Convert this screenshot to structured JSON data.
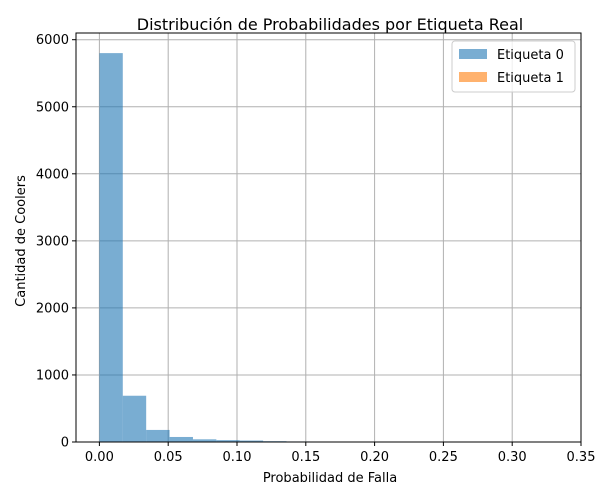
{
  "chart_data": {
    "type": "bar",
    "subtype": "histogram",
    "title": "Distribución de Probabilidades por Etiqueta Real",
    "xlabel": "Probabilidad de Falla",
    "ylabel": "Cantidad de Coolers",
    "xlim": [
      -0.017,
      0.35
    ],
    "ylim": [
      0,
      6100
    ],
    "xticks": [
      0.0,
      0.05,
      0.1,
      0.15,
      0.2,
      0.25,
      0.3,
      0.35
    ],
    "xtick_labels": [
      "0.00",
      "0.05",
      "0.10",
      "0.15",
      "0.20",
      "0.25",
      "0.30",
      "0.35"
    ],
    "yticks": [
      0,
      1000,
      2000,
      3000,
      4000,
      5000,
      6000
    ],
    "ytick_labels": [
      "0",
      "1000",
      "2000",
      "3000",
      "4000",
      "5000",
      "6000"
    ],
    "grid": true,
    "legend_position": "top-right",
    "series": [
      {
        "name": "Etiqueta 0",
        "color": "#1f77b4",
        "alpha": 0.6,
        "bin_edges": [
          0.0,
          0.017,
          0.034,
          0.051,
          0.068,
          0.085,
          0.102,
          0.119,
          0.136,
          0.153,
          0.17,
          0.187,
          0.204,
          0.221,
          0.238,
          0.255,
          0.272,
          0.289,
          0.306,
          0.323,
          0.34
        ],
        "counts": [
          5800,
          690,
          180,
          75,
          40,
          28,
          22,
          12,
          8,
          6,
          4,
          3,
          2,
          1,
          1,
          0,
          0,
          0,
          0,
          1
        ]
      },
      {
        "name": "Etiqueta 1",
        "color": "#ff7f0e",
        "alpha": 0.6,
        "bin_edges": [
          0.0,
          0.017,
          0.034,
          0.051,
          0.068,
          0.085,
          0.102,
          0.119,
          0.136,
          0.153,
          0.17,
          0.187,
          0.204,
          0.221,
          0.238,
          0.255,
          0.272,
          0.289,
          0.306,
          0.323,
          0.34
        ],
        "counts": [
          0,
          0,
          0,
          0,
          0,
          0,
          0,
          0,
          0,
          0,
          0,
          0,
          0,
          0,
          0,
          0,
          0,
          0,
          0,
          0
        ]
      }
    ]
  }
}
